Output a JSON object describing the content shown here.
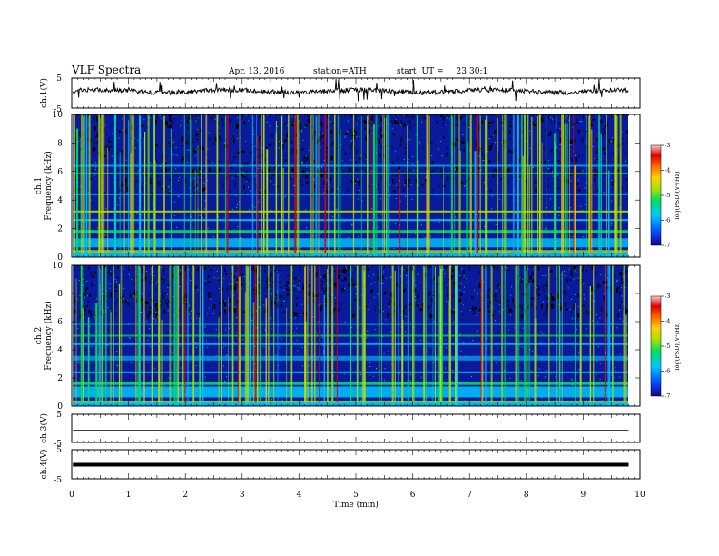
{
  "header": {
    "title": "VLF Spectra",
    "date": "Apr. 13, 2016",
    "station": "station=ATH",
    "start_label": "start",
    "ut_label": "UT =",
    "start_time": "23:30:1"
  },
  "colors": {
    "waveform": "#000000",
    "spectrogram_background": "#0a1a9c",
    "colormap": [
      "#1a0090",
      "#0050ff",
      "#00c8ff",
      "#00e060",
      "#b0e000",
      "#ffd000",
      "#ff6000",
      "#e00000",
      "#ffc8c8"
    ]
  },
  "chart_data": [
    {
      "type": "line",
      "panel": "ch.1 waveform",
      "ylabel": "ch.1(V)",
      "ylim": [
        -5,
        5
      ],
      "yticks": [
        "5",
        "-5"
      ],
      "xlim": [
        0,
        10
      ],
      "baseline_value": 0,
      "note_values": "continuous noisy trace near 0 V with sporadic spikes"
    },
    {
      "type": "heatmap",
      "panel": "ch.1 spectrogram",
      "ylabel_channel": "ch.1",
      "ylabel": "Frequency (kHz)",
      "ylim": [
        0,
        10
      ],
      "yticks": [
        "0",
        "2",
        "4",
        "6",
        "8",
        "10"
      ],
      "xlim": [
        0,
        9.8
      ],
      "colorbar": {
        "label": "log(PSD)(V²/Hz)",
        "range": [
          -7,
          -3
        ],
        "ticks": [
          "-3",
          "-4",
          "-5",
          "-6",
          "-7"
        ]
      }
    },
    {
      "type": "heatmap",
      "panel": "ch.2 spectrogram",
      "ylabel_channel": "ch.2",
      "ylabel": "Frequency (kHz)",
      "ylim": [
        0,
        10
      ],
      "yticks": [
        "0",
        "2",
        "4",
        "6",
        "8",
        "10"
      ],
      "xlim": [
        0,
        9.8
      ],
      "colorbar": {
        "label": "log(PSD)(V²/Hz)",
        "range": [
          -7,
          -3
        ],
        "ticks": [
          "-3",
          "-4",
          "-5",
          "-6",
          "-7"
        ]
      }
    },
    {
      "type": "line",
      "panel": "ch.3 waveform",
      "ylabel": "ch.3(V)",
      "ylim": [
        -5,
        5
      ],
      "yticks": [
        "5",
        "-5"
      ],
      "baseline_value": 0
    },
    {
      "type": "line",
      "panel": "ch.4 waveform",
      "ylabel": "ch.4(V)",
      "ylim": [
        -5,
        5
      ],
      "yticks": [
        "5",
        "-5"
      ],
      "baseline_value": 0
    }
  ],
  "x_axis": {
    "label": "Time (min)",
    "range": [
      0,
      10
    ],
    "ticks": [
      "0",
      "1",
      "2",
      "3",
      "4",
      "5",
      "6",
      "7",
      "8",
      "9",
      "10"
    ]
  }
}
